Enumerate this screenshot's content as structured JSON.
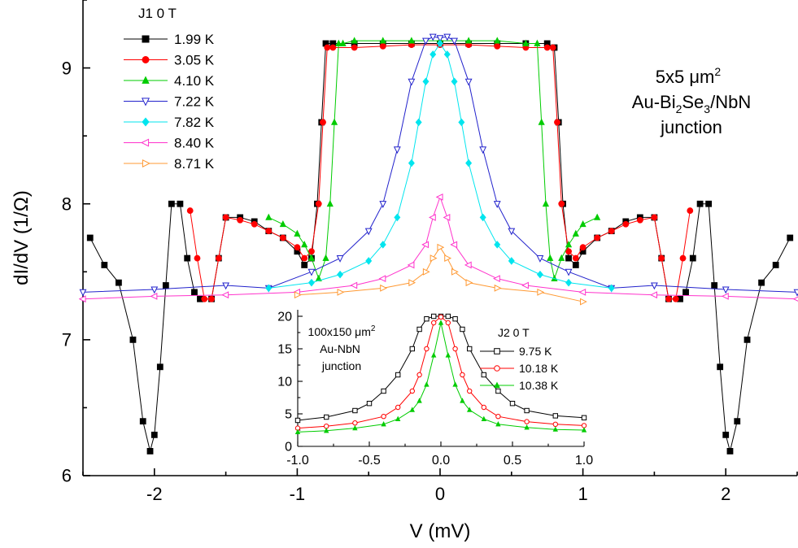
{
  "chart_data": [
    {
      "type": "line",
      "xlabel": "V (mV)",
      "ylabel": "dI/dV (1/Ω)",
      "xlim": [
        -2.5,
        2.5
      ],
      "ylim": [
        6,
        9.5
      ],
      "xticks": [
        -2,
        -1,
        0,
        1,
        2
      ],
      "yticks": [
        6,
        7,
        8,
        9
      ],
      "grid": false,
      "legend": {
        "position": "top-left",
        "header": "J1   0 T"
      },
      "annotation": {
        "line1": "5x5 μm",
        "line1_sup": "2",
        "line2a": "Au-Bi",
        "line2_sub1": "2",
        "line2b": "Se",
        "line2_sub2": "3",
        "line2c": "/NbN",
        "line3": "junction"
      },
      "series": [
        {
          "name": "1.99 K",
          "color": "#000000",
          "marker": "square-filled",
          "x": [
            -2.45,
            -2.35,
            -2.25,
            -2.15,
            -2.08,
            -2.03,
            -2.0,
            -1.96,
            -1.92,
            -1.88,
            -1.82,
            -1.77,
            -1.72,
            -1.68,
            -1.6,
            -1.55,
            -1.5,
            -1.4,
            -1.3,
            -1.2,
            -1.1,
            -1.0,
            -0.95,
            -0.9,
            -0.86,
            -0.83,
            -0.8,
            -0.75,
            -0.6,
            -0.4,
            -0.2,
            0.0,
            0.2,
            0.4,
            0.6,
            0.75,
            0.8,
            0.83,
            0.86,
            0.9,
            0.95,
            1.0,
            1.1,
            1.2,
            1.3,
            1.4,
            1.5,
            1.55,
            1.6,
            1.68,
            1.72,
            1.77,
            1.82,
            1.88,
            1.92,
            1.96,
            2.0,
            2.03,
            2.08,
            2.15,
            2.25,
            2.35,
            2.45
          ],
          "y": [
            7.75,
            7.55,
            7.42,
            7.0,
            6.4,
            6.18,
            6.3,
            6.8,
            7.4,
            8.0,
            8.0,
            7.6,
            7.35,
            7.3,
            7.3,
            7.6,
            7.9,
            7.9,
            7.87,
            7.8,
            7.75,
            7.65,
            7.55,
            7.6,
            8.0,
            8.6,
            9.18,
            9.18,
            9.18,
            9.18,
            9.18,
            9.18,
            9.18,
            9.18,
            9.18,
            9.18,
            9.15,
            8.6,
            8.0,
            7.6,
            7.55,
            7.65,
            7.75,
            7.8,
            7.87,
            7.9,
            7.9,
            7.6,
            7.3,
            7.3,
            7.35,
            7.6,
            8.0,
            8.0,
            7.4,
            6.8,
            6.3,
            6.18,
            6.4,
            7.0,
            7.42,
            7.55,
            7.75
          ]
        },
        {
          "name": "3.05 K",
          "color": "#ff0000",
          "marker": "circle-filled",
          "x": [
            -1.75,
            -1.7,
            -1.65,
            -1.6,
            -1.55,
            -1.5,
            -1.4,
            -1.3,
            -1.2,
            -1.1,
            -1.0,
            -0.95,
            -0.9,
            -0.85,
            -0.82,
            -0.79,
            -0.75,
            -0.6,
            -0.4,
            -0.2,
            0.0,
            0.2,
            0.4,
            0.6,
            0.75,
            0.79,
            0.82,
            0.85,
            0.9,
            0.95,
            1.0,
            1.1,
            1.2,
            1.3,
            1.4,
            1.5,
            1.55,
            1.6,
            1.65,
            1.7,
            1.75
          ],
          "y": [
            7.95,
            7.6,
            7.3,
            7.3,
            7.6,
            7.9,
            7.88,
            7.85,
            7.8,
            7.75,
            7.68,
            7.6,
            7.65,
            8.0,
            8.6,
            9.15,
            9.15,
            9.15,
            9.16,
            9.17,
            9.17,
            9.17,
            9.16,
            9.15,
            9.15,
            9.15,
            8.6,
            8.0,
            7.65,
            7.6,
            7.68,
            7.75,
            7.8,
            7.85,
            7.88,
            7.9,
            7.6,
            7.3,
            7.3,
            7.6,
            7.95
          ]
        },
        {
          "name": "4.10 K",
          "color": "#00cc00",
          "marker": "triangle-up-filled",
          "x": [
            -1.2,
            -1.1,
            -1.0,
            -0.95,
            -0.9,
            -0.85,
            -0.8,
            -0.77,
            -0.74,
            -0.71,
            -0.68,
            -0.6,
            -0.4,
            -0.2,
            0.0,
            0.2,
            0.4,
            0.6,
            0.68,
            0.71,
            0.74,
            0.77,
            0.8,
            0.85,
            0.9,
            0.95,
            1.0,
            1.1
          ],
          "y": [
            7.9,
            7.85,
            7.78,
            7.7,
            7.6,
            7.45,
            7.6,
            8.0,
            8.6,
            9.18,
            9.18,
            9.2,
            9.2,
            9.2,
            9.2,
            9.2,
            9.2,
            9.18,
            9.18,
            8.6,
            8.0,
            7.6,
            7.45,
            7.6,
            7.7,
            7.78,
            7.85,
            7.9
          ]
        },
        {
          "name": "7.22 K",
          "color": "#2222cc",
          "marker": "triangle-down-open",
          "x": [
            -2.5,
            -2.0,
            -1.5,
            -1.2,
            -0.9,
            -0.7,
            -0.5,
            -0.4,
            -0.3,
            -0.2,
            -0.1,
            -0.05,
            0.0,
            0.05,
            0.1,
            0.2,
            0.3,
            0.4,
            0.5,
            0.7,
            0.9,
            1.2,
            1.5,
            2.0,
            2.5
          ],
          "y": [
            7.35,
            7.37,
            7.4,
            7.38,
            7.5,
            7.6,
            7.8,
            8.0,
            8.4,
            8.9,
            9.2,
            9.23,
            9.22,
            9.23,
            9.2,
            8.9,
            8.4,
            8.0,
            7.8,
            7.6,
            7.5,
            7.38,
            7.4,
            7.37,
            7.35
          ]
        },
        {
          "name": "7.82 K",
          "color": "#00e5ee",
          "marker": "diamond-filled",
          "x": [
            -1.2,
            -0.9,
            -0.7,
            -0.5,
            -0.4,
            -0.3,
            -0.2,
            -0.15,
            -0.1,
            -0.05,
            0.0,
            0.05,
            0.1,
            0.15,
            0.2,
            0.3,
            0.4,
            0.5,
            0.7,
            0.9,
            1.2
          ],
          "y": [
            7.38,
            7.42,
            7.48,
            7.58,
            7.7,
            7.9,
            8.3,
            8.6,
            8.9,
            9.1,
            9.18,
            9.1,
            8.9,
            8.6,
            8.3,
            7.9,
            7.7,
            7.58,
            7.48,
            7.42,
            7.38
          ]
        },
        {
          "name": "8.40 K",
          "color": "#ff33cc",
          "marker": "triangle-left-open",
          "x": [
            -2.5,
            -2.0,
            -1.5,
            -1.0,
            -0.6,
            -0.4,
            -0.2,
            -0.1,
            -0.05,
            0.0,
            0.05,
            0.1,
            0.2,
            0.4,
            0.6,
            1.0,
            1.5,
            2.0,
            2.5
          ],
          "y": [
            7.3,
            7.32,
            7.33,
            7.35,
            7.4,
            7.45,
            7.55,
            7.7,
            7.9,
            8.05,
            7.9,
            7.7,
            7.55,
            7.45,
            7.4,
            7.35,
            7.33,
            7.32,
            7.3
          ]
        },
        {
          "name": "8.71 K",
          "color": "#ff9933",
          "marker": "triangle-right-open",
          "x": [
            -1.0,
            -0.7,
            -0.4,
            -0.2,
            -0.1,
            -0.05,
            0.0,
            0.05,
            0.1,
            0.2,
            0.4,
            0.7,
            1.0
          ],
          "y": [
            7.33,
            7.35,
            7.38,
            7.42,
            7.5,
            7.6,
            7.68,
            7.6,
            7.5,
            7.42,
            7.38,
            7.35,
            7.28
          ]
        }
      ]
    },
    {
      "type": "line",
      "xlabel": "",
      "ylabel": "",
      "xlim": [
        -1.0,
        1.0
      ],
      "ylim": [
        0,
        21
      ],
      "xticks": [
        -1.0,
        -0.5,
        0.0,
        0.5,
        1.0
      ],
      "xtick_labels": [
        "-1.0",
        "-0.5",
        "0.0",
        "0.5",
        "1.0"
      ],
      "yticks": [
        0,
        5,
        10,
        15,
        20
      ],
      "legend": {
        "position": "top-right",
        "header": "J2   0 T"
      },
      "annotation": {
        "line1": "100x150 μm",
        "line1_sup": "2",
        "line2": "Au-NbN",
        "line3": "junction"
      },
      "series": [
        {
          "name": "9.75 K",
          "color": "#000000",
          "marker": "square-open",
          "x": [
            -1.0,
            -0.8,
            -0.6,
            -0.5,
            -0.4,
            -0.3,
            -0.2,
            -0.15,
            -0.1,
            -0.05,
            0.0,
            0.05,
            0.1,
            0.15,
            0.2,
            0.3,
            0.4,
            0.5,
            0.6,
            0.8,
            1.0
          ],
          "y": [
            4.0,
            4.5,
            5.5,
            6.6,
            8.5,
            11.0,
            15.0,
            18.0,
            19.6,
            20.0,
            20.0,
            20.0,
            19.6,
            18.0,
            15.0,
            11.0,
            8.5,
            6.6,
            5.5,
            4.7,
            4.4
          ]
        },
        {
          "name": "10.18 K",
          "color": "#ff0000",
          "marker": "circle-open",
          "x": [
            -1.0,
            -0.8,
            -0.6,
            -0.4,
            -0.3,
            -0.2,
            -0.15,
            -0.1,
            -0.05,
            0.0,
            0.05,
            0.1,
            0.15,
            0.2,
            0.3,
            0.4,
            0.6,
            0.8,
            1.0
          ],
          "y": [
            2.8,
            3.1,
            3.6,
            4.6,
            6.0,
            8.5,
            11.0,
            15.0,
            19.0,
            19.9,
            19.0,
            15.0,
            11.0,
            8.5,
            6.0,
            4.6,
            3.8,
            3.4,
            3.2
          ]
        },
        {
          "name": "10.38 K",
          "color": "#00cc00",
          "marker": "triangle-up-filled",
          "x": [
            -1.0,
            -0.8,
            -0.6,
            -0.4,
            -0.3,
            -0.2,
            -0.15,
            -0.1,
            -0.05,
            0.0,
            0.05,
            0.1,
            0.15,
            0.2,
            0.3,
            0.4,
            0.6,
            0.8,
            1.0
          ],
          "y": [
            2.2,
            2.4,
            2.8,
            3.4,
            4.2,
            5.6,
            7.0,
            9.5,
            14.0,
            19.0,
            14.0,
            9.5,
            7.0,
            5.6,
            4.2,
            3.4,
            2.9,
            2.6,
            2.5
          ]
        }
      ]
    }
  ]
}
